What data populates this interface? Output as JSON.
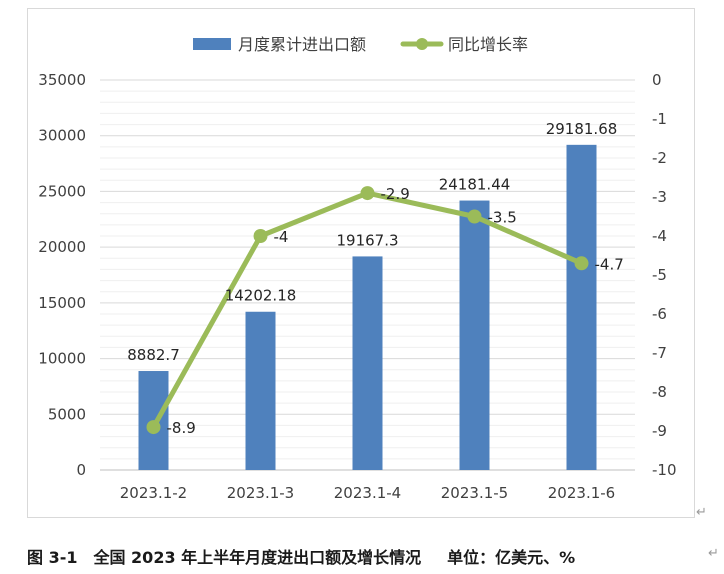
{
  "chart_data": {
    "type": "bar+line",
    "categories": [
      "2023.1-2",
      "2023.1-3",
      "2023.1-4",
      "2023.1-5",
      "2023.1-6"
    ],
    "series": [
      {
        "name": "月度累计进出口额",
        "type": "bar",
        "axis": "left",
        "color": "#4f81bd",
        "values": [
          8882.7,
          14202.18,
          19167.3,
          24181.44,
          29181.68
        ],
        "labels": [
          "8882.7",
          "14202.18",
          "19167.3",
          "24181.44",
          "29181.68"
        ]
      },
      {
        "name": "同比增长率",
        "type": "line",
        "axis": "right",
        "color": "#9bbb59",
        "values": [
          -8.9,
          -4,
          -2.9,
          -3.5,
          -4.7
        ],
        "labels": [
          "-8.9",
          "-4",
          "-2.9",
          "-3.5",
          "-4.7"
        ]
      }
    ],
    "y_left": {
      "min": 0,
      "max": 35000,
      "ticks": [
        "35000",
        "30000",
        "25000",
        "20000",
        "15000",
        "10000",
        "5000",
        "0"
      ]
    },
    "y_right": {
      "min": -10,
      "max": 0,
      "ticks": [
        "0",
        "-1",
        "-2",
        "-3",
        "-4",
        "-5",
        "-6",
        "-7",
        "-8",
        "-9",
        "-10"
      ]
    },
    "grid": true,
    "legend_position": "top"
  },
  "caption": {
    "title": "图 3-1　全国 2023 年上半年月度进出口额及增长情况",
    "units": "单位：亿美元、%"
  },
  "marks": {
    "para": "↵"
  }
}
